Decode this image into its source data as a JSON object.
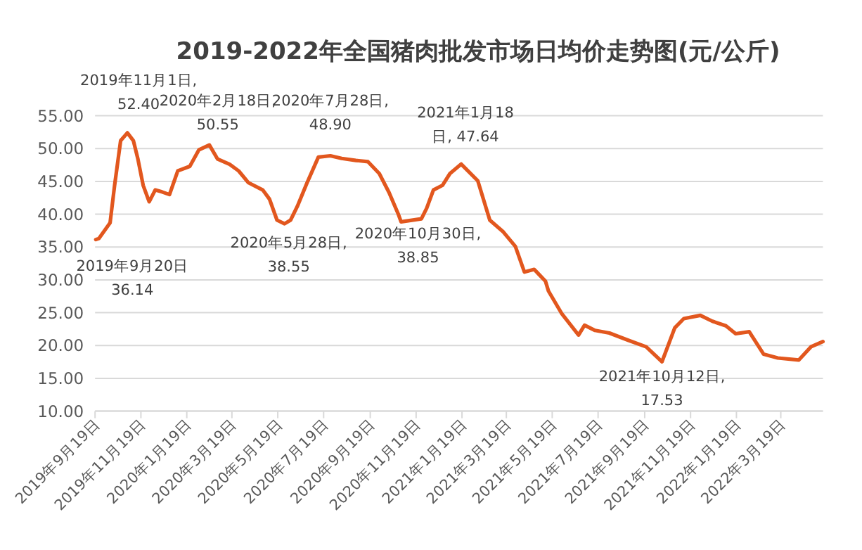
{
  "chart_data": {
    "type": "line",
    "title": "2019-2022年全国猪肉批发市场日均价走势图(元/公斤)",
    "series": [
      {
        "color": "#e2571e",
        "x": [
          "2019-09-20",
          "2019-09-24",
          "2019-10-09",
          "2019-10-15",
          "2019-10-23",
          "2019-11-01",
          "2019-11-09",
          "2019-11-15",
          "2019-11-22",
          "2019-11-30",
          "2019-12-08",
          "2019-12-17",
          "2019-12-27",
          "2020-01-07",
          "2020-01-23",
          "2020-02-04",
          "2020-02-18",
          "2020-02-29",
          "2020-03-16",
          "2020-03-28",
          "2020-04-10",
          "2020-04-29",
          "2020-05-08",
          "2020-05-18",
          "2020-05-28",
          "2020-06-05",
          "2020-06-14",
          "2020-06-27",
          "2020-07-12",
          "2020-07-28",
          "2020-08-12",
          "2020-08-31",
          "2020-09-16",
          "2020-10-01",
          "2020-10-14",
          "2020-10-26",
          "2020-10-30",
          "2020-11-26",
          "2020-12-03",
          "2020-12-12",
          "2020-12-24",
          "2021-01-03",
          "2021-01-18",
          "2021-02-09",
          "2021-02-25",
          "2021-03-15",
          "2021-03-31",
          "2021-04-12",
          "2021-04-25",
          "2021-05-10",
          "2021-05-14",
          "2021-06-01",
          "2021-06-23",
          "2021-07-01",
          "2021-07-15",
          "2021-08-03",
          "2021-08-28",
          "2021-09-21",
          "2021-10-12",
          "2021-10-29",
          "2021-11-10",
          "2021-12-02",
          "2021-12-18",
          "2022-01-05",
          "2022-01-18",
          "2022-02-05",
          "2022-02-24",
          "2022-03-15",
          "2022-04-12",
          "2022-04-28",
          "2022-05-14"
        ],
        "values": [
          36.14,
          36.3,
          38.7,
          44.4,
          51.2,
          52.4,
          51.2,
          48.4,
          44.4,
          41.9,
          43.7,
          43.4,
          43.0,
          46.6,
          47.3,
          49.8,
          50.55,
          48.4,
          47.6,
          46.6,
          44.8,
          43.7,
          42.3,
          39.1,
          38.55,
          39.1,
          41.2,
          44.8,
          48.7,
          48.9,
          48.5,
          48.2,
          48.0,
          46.2,
          43.3,
          40.1,
          38.85,
          39.3,
          40.9,
          43.7,
          44.4,
          46.2,
          47.64,
          45.1,
          39.1,
          37.3,
          35.1,
          31.2,
          31.6,
          29.8,
          28.3,
          24.8,
          21.6,
          23.1,
          22.3,
          21.9,
          20.8,
          19.8,
          17.53,
          22.7,
          24.1,
          24.6,
          23.7,
          23.0,
          21.8,
          22.1,
          18.7,
          18.1,
          17.8,
          19.8,
          20.6
        ]
      }
    ],
    "xlim": [
      "2019-09-19",
      "2022-05-14"
    ],
    "xticks": [
      {
        "value": "2019-09-19",
        "label": "2019年9月19日"
      },
      {
        "value": "2019-11-19",
        "label": "2019年11月19日"
      },
      {
        "value": "2020-01-19",
        "label": "2020年1月19日"
      },
      {
        "value": "2020-03-19",
        "label": "2020年3月19日"
      },
      {
        "value": "2020-05-19",
        "label": "2020年5月19日"
      },
      {
        "value": "2020-07-19",
        "label": "2020年7月19日"
      },
      {
        "value": "2020-09-19",
        "label": "2020年9月19日"
      },
      {
        "value": "2020-11-19",
        "label": "2020年11月19日"
      },
      {
        "value": "2021-01-19",
        "label": "2021年1月19日"
      },
      {
        "value": "2021-03-19",
        "label": "2021年3月19日"
      },
      {
        "value": "2021-05-19",
        "label": "2021年5月19日"
      },
      {
        "value": "2021-07-19",
        "label": "2021年7月19日"
      },
      {
        "value": "2021-09-19",
        "label": "2021年9月19日"
      },
      {
        "value": "2021-11-19",
        "label": "2021年11月19日"
      },
      {
        "value": "2022-01-19",
        "label": "2022年1月19日"
      },
      {
        "value": "2022-03-19",
        "label": "2022年3月19日"
      }
    ],
    "ylim": [
      10,
      55
    ],
    "yticks": [
      {
        "value": 10,
        "label": "10.00"
      },
      {
        "value": 15,
        "label": "15.00"
      },
      {
        "value": 20,
        "label": "20.00"
      },
      {
        "value": 25,
        "label": "25.00"
      },
      {
        "value": 30,
        "label": "30.00"
      },
      {
        "value": 35,
        "label": "35.00"
      },
      {
        "value": 40,
        "label": "40.00"
      },
      {
        "value": 45,
        "label": "45.00"
      },
      {
        "value": 50,
        "label": "50.00"
      },
      {
        "value": 55,
        "label": "55.00"
      }
    ],
    "grid": "y",
    "marker": "none",
    "line_style": "solid",
    "annotations": [
      {
        "text": "2019年9月20日\n36.14",
        "x": "2019-09-20",
        "y": 36.14
      },
      {
        "text": "2019年11月1日,\n52.40",
        "x": "2019-11-01",
        "y": 52.4
      },
      {
        "text": "2020年2月18日,\n50.55",
        "x": "2020-02-18",
        "y": 50.55
      },
      {
        "text": "2020年7月28日,\n48.90",
        "x": "2020-07-28",
        "y": 48.9
      },
      {
        "text": "2020年5月28日,\n38.55",
        "x": "2020-05-28",
        "y": 38.55
      },
      {
        "text": "2020年10月30日,\n38.85",
        "x": "2020-10-30",
        "y": 38.85
      },
      {
        "text": "2021年1月18\n日, 47.64",
        "x": "2021-01-18",
        "y": 47.64
      },
      {
        "text": "2021年10月12日,\n17.53",
        "x": "2021-10-12",
        "y": 17.53
      }
    ]
  }
}
